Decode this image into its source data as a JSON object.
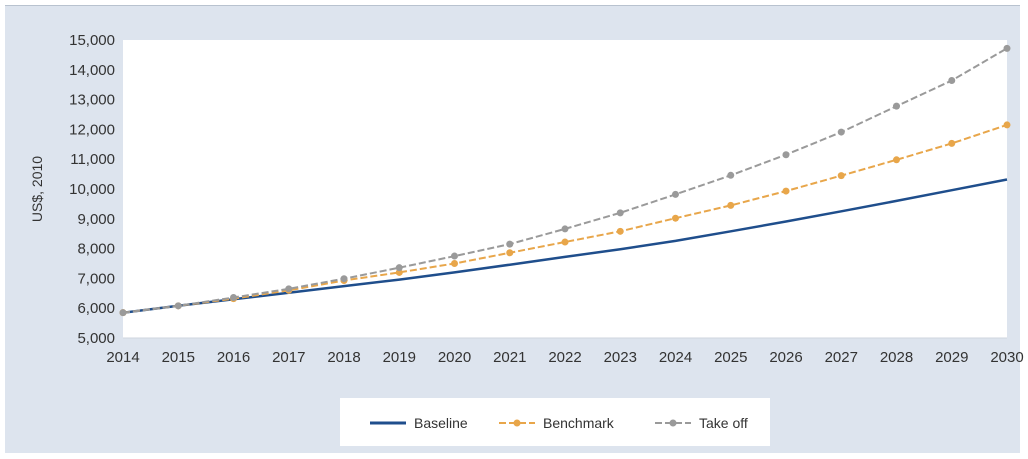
{
  "chart_data": {
    "type": "line",
    "title": "",
    "xlabel": "",
    "ylabel": "US$, 2010",
    "x": [
      "2014",
      "2015",
      "2016",
      "2017",
      "2018",
      "2019",
      "2020",
      "2021",
      "2022",
      "2023",
      "2024",
      "2025",
      "2026",
      "2027",
      "2028",
      "2029",
      "2030"
    ],
    "ylim": [
      5000,
      15000
    ],
    "yticks": [
      "5,000",
      "6,000",
      "7,000",
      "8,000",
      "9,000",
      "10,000",
      "11,000",
      "12,000",
      "13,000",
      "14,000",
      "15,000"
    ],
    "grid": false,
    "legend_position": "bottom",
    "series": [
      {
        "name": "Baseline",
        "color": "#1f4e8c",
        "marker": "none",
        "dashed": false,
        "values": [
          5850,
          6080,
          6300,
          6520,
          6740,
          6960,
          7200,
          7460,
          7720,
          7980,
          8260,
          8580,
          8910,
          9250,
          9600,
          9960,
          10320
        ]
      },
      {
        "name": "Benchmark",
        "color": "#e8a64a",
        "marker": "circle",
        "dashed": true,
        "values": [
          5850,
          6080,
          6320,
          6600,
          6930,
          7200,
          7500,
          7860,
          8220,
          8580,
          9020,
          9450,
          9930,
          10450,
          10980,
          11530,
          12150
        ]
      },
      {
        "name": "Take off",
        "color": "#9a9a9a",
        "marker": "circle",
        "dashed": true,
        "values": [
          5850,
          6080,
          6360,
          6650,
          6990,
          7360,
          7750,
          8150,
          8660,
          9200,
          9820,
          10460,
          11150,
          11910,
          12780,
          13640,
          14720
        ]
      }
    ]
  }
}
